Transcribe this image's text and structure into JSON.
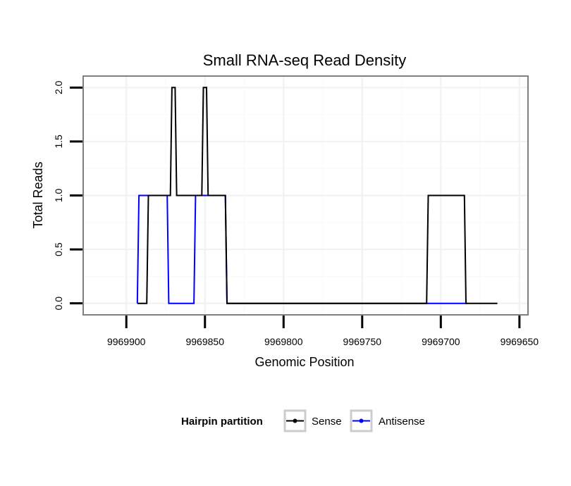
{
  "chart_data": {
    "type": "line",
    "title": "Small RNA-seq Read Density",
    "xlabel": "Genomic Position",
    "ylabel": "Total Reads",
    "x_reversed": true,
    "xlim": [
      9969927,
      9969645
    ],
    "ylim": [
      -0.1,
      2.1
    ],
    "x_ticks": [
      9969900,
      9969850,
      9969800,
      9969750,
      9969700,
      9969650
    ],
    "x_tick_labels": [
      "9969900",
      "9969850",
      "9969800",
      "9969750",
      "9969700",
      "9969650"
    ],
    "y_ticks": [
      0,
      0.5,
      1,
      1.5,
      2
    ],
    "y_tick_labels": [
      "0.0",
      "0.5",
      "1.0",
      "1.5",
      "2.0"
    ],
    "grid": true,
    "legend": {
      "title": "Hairpin partition",
      "position": "bottom",
      "entries": [
        "Sense",
        "Antisense"
      ]
    },
    "series": [
      {
        "name": "Sense",
        "color": "#000000",
        "x": [
          9969893,
          9969887,
          9969886,
          9969872,
          9969871,
          9969869,
          9969868,
          9969863,
          9969862,
          9969852,
          9969851,
          9969849,
          9969848,
          9969837,
          9969836,
          9969709,
          9969708,
          9969685,
          9969684,
          9969664
        ],
        "y": [
          0,
          0,
          1,
          1,
          2,
          2,
          1,
          1,
          1,
          1,
          2,
          2,
          1,
          1,
          0,
          0,
          1,
          1,
          0,
          0
        ]
      },
      {
        "name": "Antisense",
        "color": "#0000ff",
        "x": [
          9969893,
          9969892,
          9969874,
          9969873,
          9969857,
          9969856,
          9969837,
          9969836,
          9969710,
          9969709,
          9969684,
          9969683
        ],
        "y": [
          0,
          1,
          1,
          0,
          0,
          1,
          1,
          0,
          0,
          0,
          0,
          0
        ]
      }
    ]
  }
}
